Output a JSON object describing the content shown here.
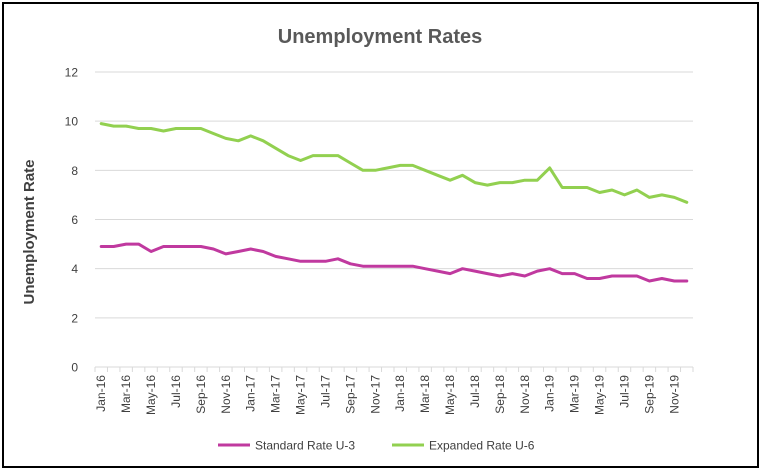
{
  "chart_data": {
    "type": "line",
    "title": "Unemployment Rates",
    "xlabel": "",
    "ylabel": "Unemployment Rate",
    "ylim": [
      0,
      12
    ],
    "yticks": [
      0,
      2,
      4,
      6,
      8,
      10,
      12
    ],
    "grid": true,
    "legend_position": "bottom",
    "categories": [
      "Jan-16",
      "Feb-16",
      "Mar-16",
      "Apr-16",
      "May-16",
      "Jun-16",
      "Jul-16",
      "Aug-16",
      "Sep-16",
      "Oct-16",
      "Nov-16",
      "Dec-16",
      "Jan-17",
      "Feb-17",
      "Mar-17",
      "Apr-17",
      "May-17",
      "Jun-17",
      "Jul-17",
      "Aug-17",
      "Sep-17",
      "Oct-17",
      "Nov-17",
      "Dec-17",
      "Jan-18",
      "Feb-18",
      "Mar-18",
      "Apr-18",
      "May-18",
      "Jun-18",
      "Jul-18",
      "Aug-18",
      "Sep-18",
      "Oct-18",
      "Nov-18",
      "Dec-18",
      "Jan-19",
      "Feb-19",
      "Mar-19",
      "Apr-19",
      "May-19",
      "Jun-19",
      "Jul-19",
      "Aug-19",
      "Sep-19",
      "Oct-19",
      "Nov-19",
      "Dec-19"
    ],
    "x_tick_labels": [
      "Jan-16",
      "Mar-16",
      "May-16",
      "Jul-16",
      "Sep-16",
      "Nov-16",
      "Jan-17",
      "Mar-17",
      "May-17",
      "Jul-17",
      "Sep-17",
      "Nov-17",
      "Jan-18",
      "Mar-18",
      "May-18",
      "Jul-18",
      "Sep-18",
      "Nov-18",
      "Jan-19",
      "Mar-19",
      "May-19",
      "Jul-19",
      "Sep-19",
      "Nov-19"
    ],
    "series": [
      {
        "name": "Standard Rate U-3",
        "color": "#c0399f",
        "values": [
          4.9,
          4.9,
          5.0,
          5.0,
          4.7,
          4.9,
          4.9,
          4.9,
          4.9,
          4.8,
          4.6,
          4.7,
          4.8,
          4.7,
          4.5,
          4.4,
          4.3,
          4.3,
          4.3,
          4.4,
          4.2,
          4.1,
          4.1,
          4.1,
          4.1,
          4.1,
          4.0,
          3.9,
          3.8,
          4.0,
          3.9,
          3.8,
          3.7,
          3.8,
          3.7,
          3.9,
          4.0,
          3.8,
          3.8,
          3.6,
          3.6,
          3.7,
          3.7,
          3.7,
          3.5,
          3.6,
          3.5,
          3.5
        ]
      },
      {
        "name": "Expanded Rate U-6",
        "color": "#92d050",
        "values": [
          9.9,
          9.8,
          9.8,
          9.7,
          9.7,
          9.6,
          9.7,
          9.7,
          9.7,
          9.5,
          9.3,
          9.2,
          9.4,
          9.2,
          8.9,
          8.6,
          8.4,
          8.6,
          8.6,
          8.6,
          8.3,
          8.0,
          8.0,
          8.1,
          8.2,
          8.2,
          8.0,
          7.8,
          7.6,
          7.8,
          7.5,
          7.4,
          7.5,
          7.5,
          7.6,
          7.6,
          8.1,
          7.3,
          7.3,
          7.3,
          7.1,
          7.2,
          7.0,
          7.2,
          6.9,
          7.0,
          6.9,
          6.7
        ]
      }
    ]
  },
  "colors": {
    "axis": "#d9d9d9",
    "grid": "#d9d9d9",
    "text": "#404040",
    "title": "#595959",
    "frame": "#000000"
  }
}
